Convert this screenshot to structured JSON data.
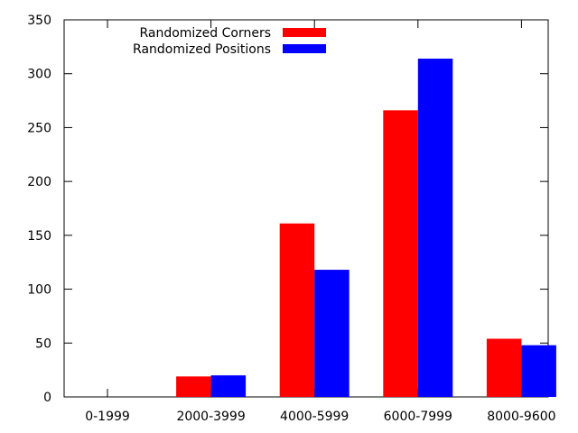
{
  "chart_data": {
    "type": "bar",
    "title": "",
    "xlabel": "",
    "ylabel": "",
    "categories": [
      "0-1999",
      "2000-3999",
      "4000-5999",
      "6000-7999",
      "8000-9600"
    ],
    "series": [
      {
        "name": "Randomized Corners",
        "color": "#ff0000",
        "values": [
          0,
          19,
          161,
          266,
          54
        ]
      },
      {
        "name": "Randomized Positions",
        "color": "#0000ff",
        "values": [
          0,
          20,
          118,
          314,
          48
        ]
      }
    ],
    "ylim": [
      0,
      350
    ],
    "yticks": [
      "0",
      "50",
      "100",
      "150",
      "200",
      "250",
      "300",
      "350"
    ],
    "grid": false,
    "legend_position": "top-left"
  }
}
